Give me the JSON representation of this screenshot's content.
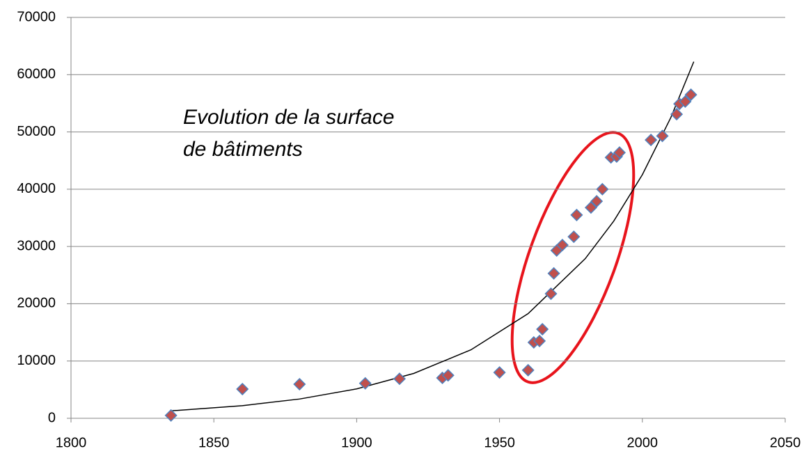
{
  "chart_data": {
    "type": "scatter",
    "annotation": [
      "Evolution de la surface",
      "de bâtiments"
    ],
    "x": [
      1835,
      1860,
      1880,
      1903,
      1915,
      1930,
      1932,
      1950,
      1960,
      1962,
      1964,
      1965,
      1968,
      1969,
      1970,
      1972,
      1976,
      1977,
      1982,
      1984,
      1986,
      1989,
      1991,
      1992,
      2003,
      2007,
      2012,
      2013,
      2015,
      2017
    ],
    "values": [
      500,
      5100,
      5950,
      6100,
      6900,
      7050,
      7500,
      8000,
      8400,
      13250,
      13500,
      15550,
      21750,
      25300,
      29300,
      30250,
      31700,
      35500,
      36800,
      37900,
      40000,
      45550,
      45700,
      46400,
      48600,
      49300,
      53100,
      54900,
      55300,
      56500
    ],
    "color": "#c0504d",
    "edge_color": "#4f81bd",
    "trendline": {
      "color": "#000000",
      "x": [
        1835,
        1860,
        1880,
        1900,
        1920,
        1940,
        1960,
        1980,
        1990,
        2000,
        2010,
        2018
      ],
      "values": [
        1300,
        2205,
        3365,
        5137,
        7840,
        11960,
        18270,
        27870,
        34450,
        42540,
        52550,
        62270
      ]
    },
    "xlim": [
      1800,
      2050
    ],
    "xticks": [
      1800,
      1850,
      1900,
      1950,
      2000,
      2050
    ],
    "ylim": [
      0,
      70000
    ],
    "yticks": [
      0,
      10000,
      20000,
      30000,
      40000,
      50000,
      60000,
      70000
    ],
    "grid": true
  }
}
